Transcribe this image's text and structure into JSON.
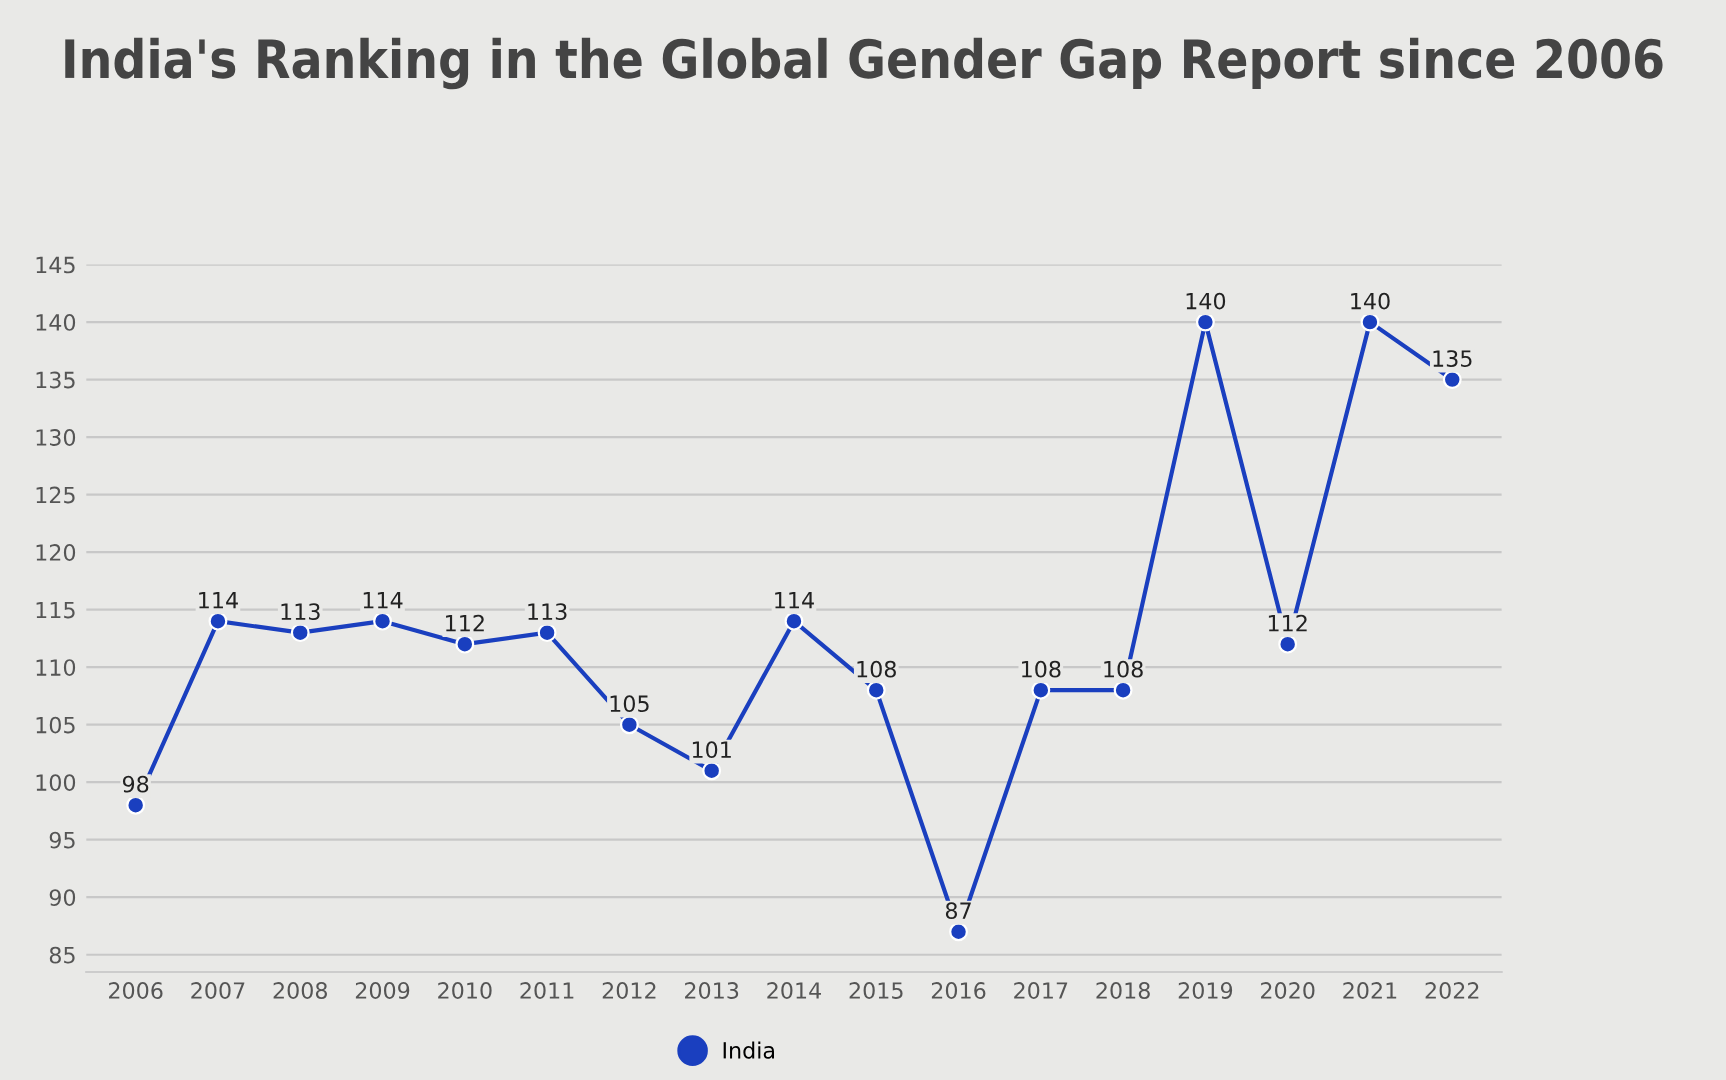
{
  "chart_data": {
    "type": "line",
    "title": "India's Ranking in the Global Gender Gap Report since 2006",
    "categories": [
      "2006",
      "2007",
      "2008",
      "2009",
      "2010",
      "2011",
      "2012",
      "2013",
      "2014",
      "2015",
      "2016",
      "2017",
      "2018",
      "2019",
      "2020",
      "2021",
      "2022"
    ],
    "series": [
      {
        "name": "India",
        "color": "#1a3fbf",
        "values": [
          98,
          114,
          113,
          114,
          112,
          113,
          105,
          101,
          114,
          108,
          87,
          108,
          108,
          140,
          112,
          140,
          135
        ]
      }
    ],
    "ylim": [
      83.5,
      145
    ],
    "yticks": [
      85,
      90,
      95,
      100,
      105,
      110,
      115,
      120,
      125,
      130,
      135,
      140,
      145
    ],
    "grid": "y",
    "legend": "bottom",
    "marker": "circle",
    "line_style": "solid",
    "data_labels": true
  }
}
